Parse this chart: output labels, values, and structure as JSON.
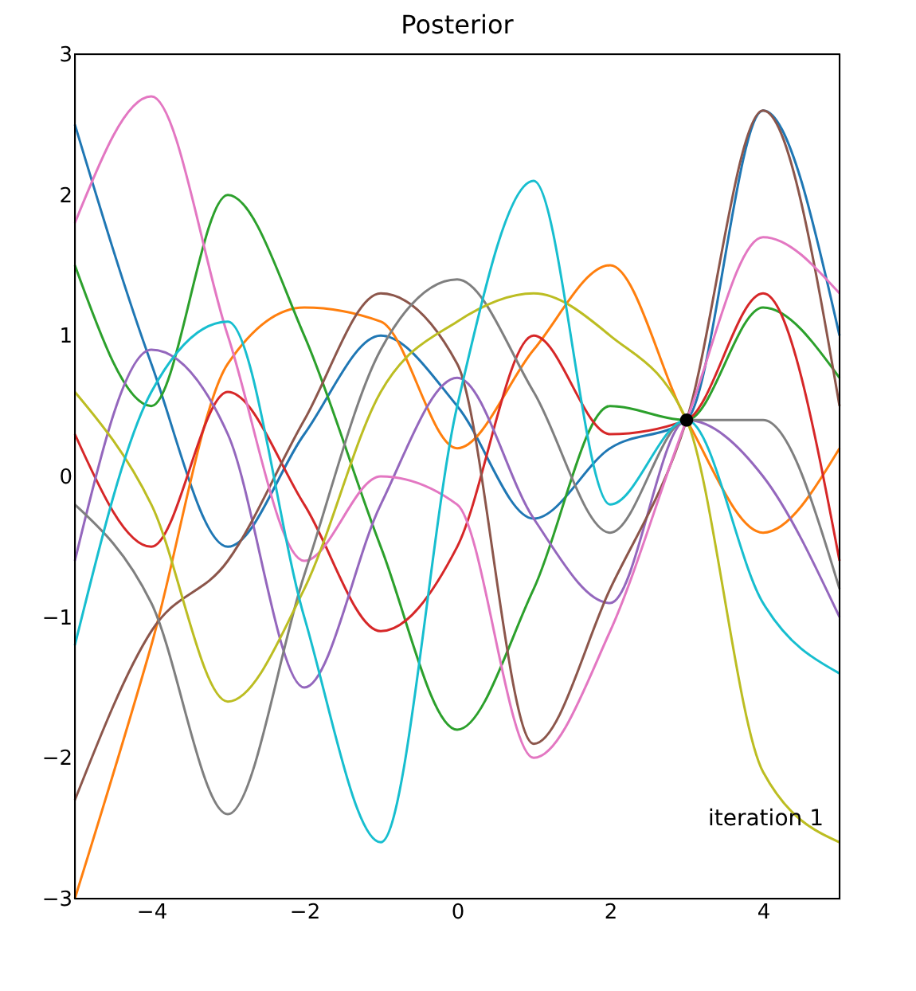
{
  "chart_data": {
    "type": "line",
    "title": "Posterior",
    "xlim": [
      -5,
      5
    ],
    "ylim": [
      -3,
      3
    ],
    "xticks": [
      -4,
      -2,
      0,
      2,
      4
    ],
    "yticks": [
      -3,
      -2,
      -1,
      0,
      1,
      2,
      3
    ],
    "grid": false,
    "marker": "none",
    "line_style": "solid",
    "x": [
      -5,
      -4,
      -3,
      -2,
      -1,
      0,
      1,
      2,
      3,
      4,
      5
    ],
    "series": [
      {
        "color": "#1f77b4",
        "values": [
          2.5,
          0.8,
          -0.5,
          0.3,
          1.0,
          0.5,
          -0.3,
          0.2,
          0.4,
          2.6,
          1.0
        ]
      },
      {
        "color": "#ff7f0e",
        "values": [
          -3.0,
          -1.2,
          0.8,
          1.2,
          1.1,
          0.2,
          0.9,
          1.5,
          0.4,
          -0.4,
          0.2
        ]
      },
      {
        "color": "#2ca02c",
        "values": [
          1.5,
          0.5,
          2.0,
          1.0,
          -0.5,
          -1.8,
          -0.8,
          0.5,
          0.4,
          1.2,
          0.7
        ]
      },
      {
        "color": "#d62728",
        "values": [
          0.3,
          -0.5,
          0.6,
          -0.2,
          -1.1,
          -0.5,
          1.0,
          0.3,
          0.4,
          1.3,
          -0.6
        ]
      },
      {
        "color": "#9467bd",
        "values": [
          -0.6,
          0.9,
          0.3,
          -1.5,
          -0.2,
          0.7,
          -0.3,
          -0.9,
          0.4,
          0.0,
          -1.0
        ]
      },
      {
        "color": "#8c564b",
        "values": [
          -2.3,
          -1.1,
          -0.6,
          0.4,
          1.3,
          0.8,
          -1.9,
          -0.8,
          0.4,
          2.6,
          0.5
        ]
      },
      {
        "color": "#e377c2",
        "values": [
          1.8,
          2.7,
          1.0,
          -0.6,
          0.0,
          -0.2,
          -2.0,
          -1.1,
          0.4,
          1.7,
          1.3
        ]
      },
      {
        "color": "#7f7f7f",
        "values": [
          -0.2,
          -0.9,
          -2.4,
          -0.7,
          0.9,
          1.4,
          0.6,
          -0.4,
          0.4,
          0.4,
          -0.8
        ]
      },
      {
        "color": "#bcbd22",
        "values": [
          0.6,
          -0.2,
          -1.6,
          -0.8,
          0.6,
          1.1,
          1.3,
          1.0,
          0.4,
          -2.1,
          -2.6
        ]
      },
      {
        "color": "#17becf",
        "values": [
          -1.2,
          0.6,
          1.1,
          -1.0,
          -2.6,
          0.5,
          2.1,
          -0.2,
          0.4,
          -0.9,
          -1.4
        ]
      },
      {
        "type": "scatter",
        "marker": "circle",
        "color": "#000000",
        "x": [
          3
        ],
        "values": [
          0.4
        ]
      }
    ],
    "annotations": [
      "iteration 1"
    ]
  }
}
